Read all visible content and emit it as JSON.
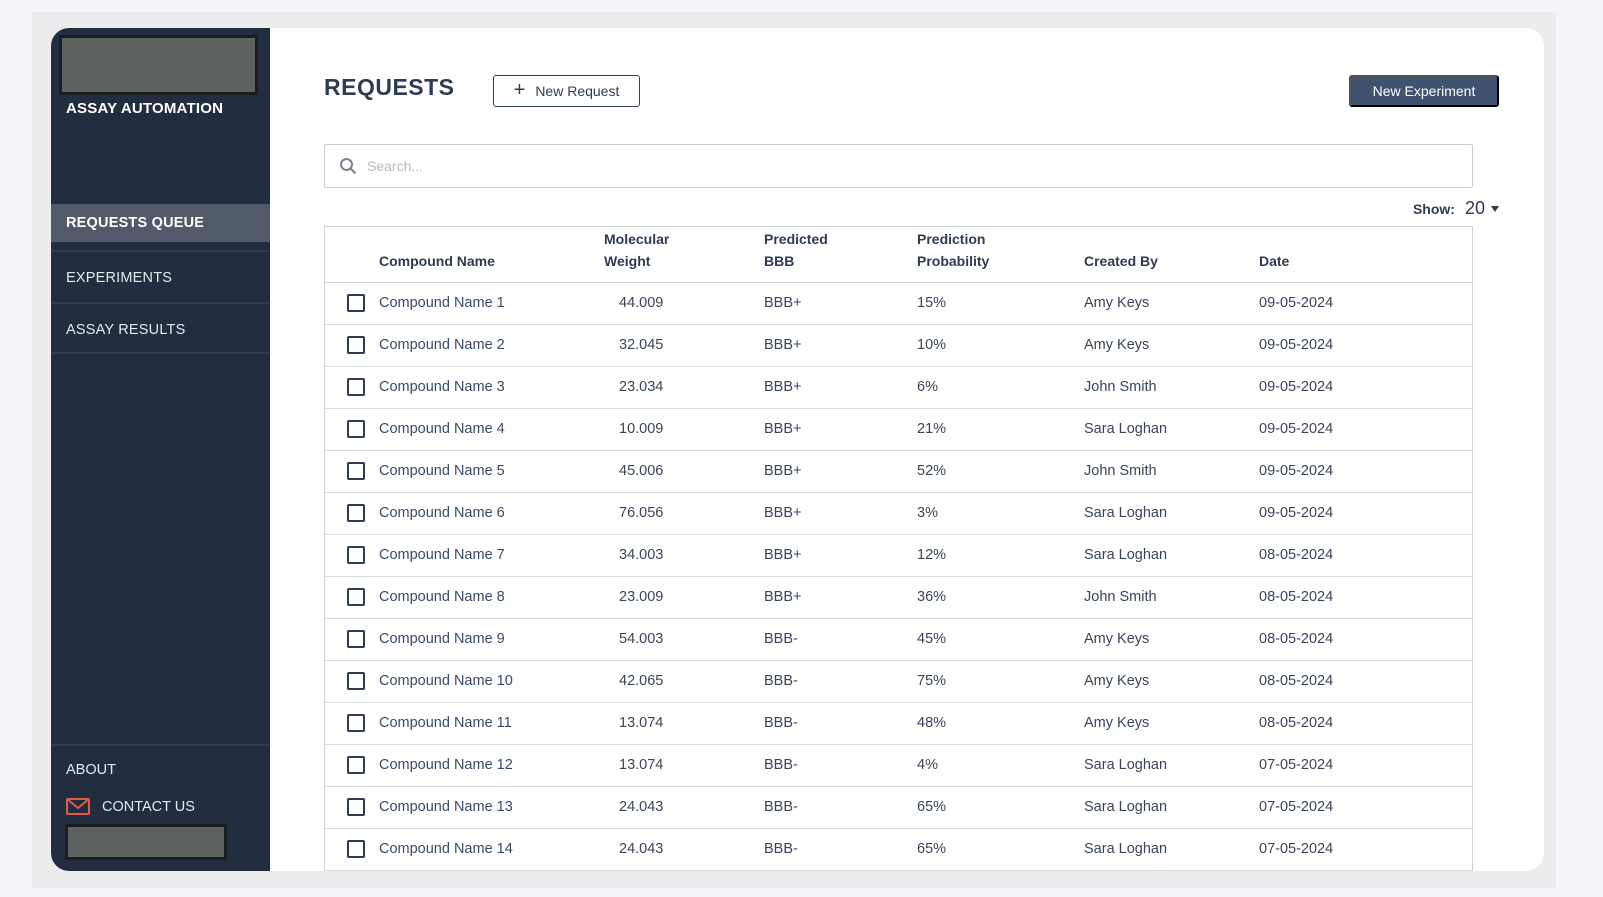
{
  "sidebar": {
    "brand": "ASSAY AUTOMATION",
    "nav": [
      {
        "label": "REQUESTS QUEUE",
        "active": true
      },
      {
        "label": "EXPERIMENTS",
        "active": false
      },
      {
        "label": "ASSAY RESULTS",
        "active": false
      }
    ],
    "about": "ABOUT",
    "contact": "CONTACT US",
    "contact_icon": "mail-icon",
    "accent": "#e05a4b"
  },
  "header": {
    "title": "REQUESTS",
    "new_request": "New Request",
    "new_experiment": "New Experiment"
  },
  "search": {
    "placeholder": "Search..."
  },
  "show": {
    "label": "Show:",
    "value": "20"
  },
  "table": {
    "columns": [
      {
        "line1": "",
        "line2": ""
      },
      {
        "line1": "",
        "line2": "Compound Name"
      },
      {
        "line1": "Molecular",
        "line2": "Weight"
      },
      {
        "line1": "Predicted",
        "line2": "BBB"
      },
      {
        "line1": "Prediction",
        "line2": "Probability"
      },
      {
        "line1": "",
        "line2": "Created By"
      },
      {
        "line1": "",
        "line2": "Date"
      }
    ],
    "rows": [
      {
        "name": "Compound Name 1",
        "mw": "44.009",
        "bbb": "BBB+",
        "prob": "15%",
        "by": "Amy Keys",
        "date": "09-05-2024"
      },
      {
        "name": "Compound Name 2",
        "mw": "32.045",
        "bbb": "BBB+",
        "prob": "10%",
        "by": "Amy Keys",
        "date": "09-05-2024"
      },
      {
        "name": "Compound Name 3",
        "mw": "23.034",
        "bbb": "BBB+",
        "prob": "6%",
        "by": "John Smith",
        "date": "09-05-2024"
      },
      {
        "name": "Compound Name 4",
        "mw": "10.009",
        "bbb": "BBB+",
        "prob": "21%",
        "by": "Sara Loghan",
        "date": "09-05-2024"
      },
      {
        "name": "Compound Name 5",
        "mw": "45.006",
        "bbb": "BBB+",
        "prob": "52%",
        "by": "John Smith",
        "date": "09-05-2024"
      },
      {
        "name": "Compound Name 6",
        "mw": "76.056",
        "bbb": "BBB+",
        "prob": "3%",
        "by": "Sara Loghan",
        "date": "09-05-2024"
      },
      {
        "name": "Compound Name 7",
        "mw": "34.003",
        "bbb": "BBB+",
        "prob": "12%",
        "by": "Sara Loghan",
        "date": "08-05-2024"
      },
      {
        "name": "Compound Name 8",
        "mw": "23.009",
        "bbb": "BBB+",
        "prob": "36%",
        "by": "John Smith",
        "date": "08-05-2024"
      },
      {
        "name": "Compound Name 9",
        "mw": "54.003",
        "bbb": "BBB-",
        "prob": "45%",
        "by": "Amy Keys",
        "date": "08-05-2024"
      },
      {
        "name": "Compound Name 10",
        "mw": "42.065",
        "bbb": "BBB-",
        "prob": "75%",
        "by": "Amy Keys",
        "date": "08-05-2024"
      },
      {
        "name": "Compound Name 11",
        "mw": "13.074",
        "bbb": "BBB-",
        "prob": "48%",
        "by": "Amy Keys",
        "date": "08-05-2024"
      },
      {
        "name": "Compound Name 12",
        "mw": "13.074",
        "bbb": "BBB-",
        "prob": "4%",
        "by": "Sara Loghan",
        "date": "07-05-2024"
      },
      {
        "name": "Compound Name 13",
        "mw": "24.043",
        "bbb": "BBB-",
        "prob": "65%",
        "by": "Sara Loghan",
        "date": "07-05-2024"
      },
      {
        "name": "Compound Name 14",
        "mw": "24.043",
        "bbb": "BBB-",
        "prob": "65%",
        "by": "Sara Loghan",
        "date": "07-05-2024"
      }
    ]
  }
}
